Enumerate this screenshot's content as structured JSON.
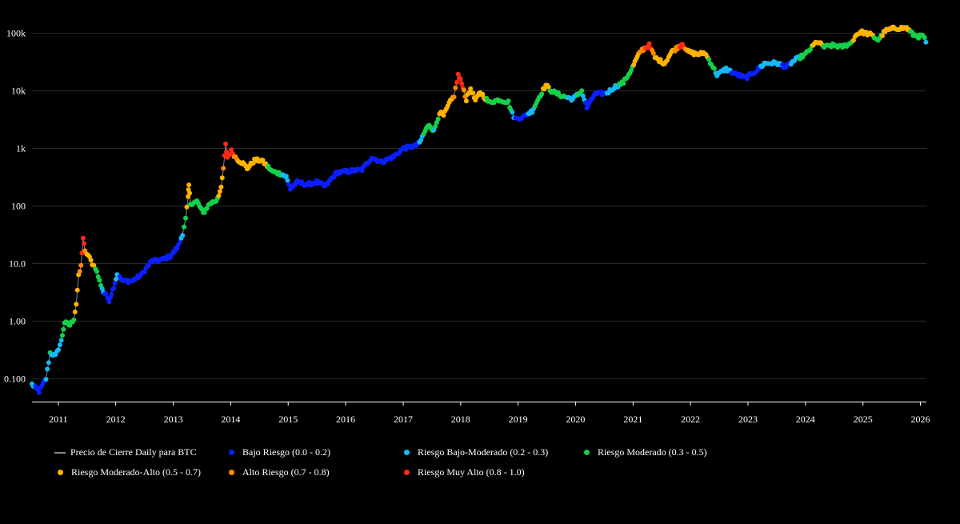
{
  "chart_data": {
    "type": "scatter",
    "title": "",
    "xlabel": "",
    "ylabel": "",
    "y_scale": "log",
    "ylim": [
      0.04,
      200000
    ],
    "xlim": [
      "2010-07-18",
      "2026-02-08"
    ],
    "y_ticks": [
      {
        "value": 0.1,
        "label": "0.100"
      },
      {
        "value": 1,
        "label": "1.00"
      },
      {
        "value": 10,
        "label": "10.0"
      },
      {
        "value": 100,
        "label": "100"
      },
      {
        "value": 1000,
        "label": "1k"
      },
      {
        "value": 10000,
        "label": "10k"
      },
      {
        "value": 100000,
        "label": "100k"
      }
    ],
    "x_ticks": [
      "2011",
      "2012",
      "2013",
      "2014",
      "2015",
      "2016",
      "2017",
      "2018",
      "2019",
      "2020",
      "2021",
      "2022",
      "2023",
      "2024",
      "2025",
      "2026"
    ],
    "grid": true,
    "legend_position": "bottom",
    "colors": {
      "background": "#000000",
      "line": "#888888",
      "bajo": "#0a1eff",
      "bajo_moderado": "#16b8f5",
      "moderado": "#13d24a",
      "moderado_alto": "#ffb300",
      "alto": "#ff8a00",
      "muy_alto": "#ff2a10"
    },
    "legend": [
      {
        "label": "Precio de Cierre Daily para BTC",
        "kind": "line",
        "color": "#888888"
      },
      {
        "label": "Bajo Riesgo (0.0 - 0.2)",
        "kind": "dot",
        "color": "#0a1eff"
      },
      {
        "label": "Riesgo Bajo-Moderado (0.2 - 0.3)",
        "kind": "dot",
        "color": "#16b8f5"
      },
      {
        "label": "Riesgo Moderado (0.3 - 0.5)",
        "kind": "dot",
        "color": "#13d24a"
      },
      {
        "label": "Riesgo Moderado-Alto (0.5 - 0.7)",
        "kind": "dot",
        "color": "#ffb300"
      },
      {
        "label": "Alto Riesgo (0.7 - 0.8)",
        "kind": "dot",
        "color": "#ff8a00"
      },
      {
        "label": "Riesgo Muy Alto (0.8 - 1.0)",
        "kind": "dot",
        "color": "#ff2a10"
      }
    ],
    "series": [
      {
        "name": "Precio de Cierre Daily para BTC",
        "x_units": "date",
        "points": [
          [
            "2010-07-18",
            0.08,
            0.25
          ],
          [
            "2010-09-01",
            0.06,
            0.1
          ],
          [
            "2010-10-15",
            0.1,
            0.2
          ],
          [
            "2010-11-10",
            0.28,
            0.3
          ],
          [
            "2010-12-15",
            0.25,
            0.2
          ],
          [
            "2011-01-20",
            0.45,
            0.25
          ],
          [
            "2011-02-10",
            0.95,
            0.4
          ],
          [
            "2011-03-15",
            0.85,
            0.3
          ],
          [
            "2011-04-10",
            1.1,
            0.45
          ],
          [
            "2011-04-25",
            2.0,
            0.55
          ],
          [
            "2011-05-10",
            6.0,
            0.65
          ],
          [
            "2011-05-25",
            9.0,
            0.75
          ],
          [
            "2011-06-08",
            28.0,
            0.9
          ],
          [
            "2011-06-20",
            16.0,
            0.75
          ],
          [
            "2011-07-10",
            14.0,
            0.6
          ],
          [
            "2011-08-05",
            10.0,
            0.55
          ],
          [
            "2011-08-25",
            8.5,
            0.45
          ],
          [
            "2011-09-20",
            5.0,
            0.35
          ],
          [
            "2011-10-15",
            3.2,
            0.25
          ],
          [
            "2011-11-01",
            2.8,
            0.1
          ],
          [
            "2011-11-20",
            2.3,
            0.1
          ],
          [
            "2011-12-20",
            4.0,
            0.1
          ],
          [
            "2012-01-10",
            6.5,
            0.25
          ],
          [
            "2012-02-15",
            5.0,
            0.1
          ],
          [
            "2012-04-15",
            5.0,
            0.1
          ],
          [
            "2012-06-15",
            6.5,
            0.1
          ],
          [
            "2012-08-15",
            11.0,
            0.1
          ],
          [
            "2012-10-15",
            11.5,
            0.1
          ],
          [
            "2012-12-15",
            13.5,
            0.1
          ],
          [
            "2013-02-01",
            20.0,
            0.15
          ],
          [
            "2013-03-01",
            33.0,
            0.25
          ],
          [
            "2013-03-20",
            60.0,
            0.45
          ],
          [
            "2013-04-05",
            140.0,
            0.6
          ],
          [
            "2013-04-10",
            230.0,
            0.65
          ],
          [
            "2013-04-20",
            110.0,
            0.4
          ],
          [
            "2013-06-01",
            120.0,
            0.4
          ],
          [
            "2013-07-10",
            75.0,
            0.35
          ],
          [
            "2013-08-20",
            110.0,
            0.4
          ],
          [
            "2013-10-01",
            125.0,
            0.45
          ],
          [
            "2013-11-01",
            200.0,
            0.55
          ],
          [
            "2013-11-15",
            450.0,
            0.75
          ],
          [
            "2013-11-30",
            1150.0,
            0.9
          ],
          [
            "2013-12-10",
            700.0,
            0.85
          ],
          [
            "2014-01-05",
            900.0,
            0.85
          ],
          [
            "2014-02-10",
            650.0,
            0.7
          ],
          [
            "2014-03-20",
            550.0,
            0.65
          ],
          [
            "2014-04-15",
            450.0,
            0.6
          ],
          [
            "2014-06-01",
            620.0,
            0.6
          ],
          [
            "2014-07-15",
            620.0,
            0.6
          ],
          [
            "2014-08-20",
            500.0,
            0.5
          ],
          [
            "2014-09-20",
            400.0,
            0.4
          ],
          [
            "2014-10-20",
            380.0,
            0.35
          ],
          [
            "2014-11-20",
            360.0,
            0.3
          ],
          [
            "2014-12-20",
            320.0,
            0.25
          ],
          [
            "2015-01-14",
            200.0,
            0.1
          ],
          [
            "2015-03-01",
            260.0,
            0.1
          ],
          [
            "2015-05-01",
            235.0,
            0.1
          ],
          [
            "2015-07-01",
            260.0,
            0.1
          ],
          [
            "2015-08-25",
            220.0,
            0.1
          ],
          [
            "2015-11-05",
            380.0,
            0.15
          ],
          [
            "2016-01-15",
            400.0,
            0.15
          ],
          [
            "2016-04-15",
            430.0,
            0.15
          ],
          [
            "2016-06-15",
            700.0,
            0.15
          ],
          [
            "2016-08-15",
            580.0,
            0.15
          ],
          [
            "2016-11-01",
            720.0,
            0.15
          ],
          [
            "2017-01-01",
            1000.0,
            0.15
          ],
          [
            "2017-03-15",
            1100.0,
            0.15
          ],
          [
            "2017-04-15",
            1250.0,
            0.2
          ],
          [
            "2017-05-20",
            2000.0,
            0.35
          ],
          [
            "2017-06-15",
            2600.0,
            0.45
          ],
          [
            "2017-07-15",
            2000.0,
            0.25
          ],
          [
            "2017-08-20",
            4200.0,
            0.5
          ],
          [
            "2017-09-15",
            3700.0,
            0.5
          ],
          [
            "2017-10-20",
            6000.0,
            0.6
          ],
          [
            "2017-11-20",
            8200.0,
            0.7
          ],
          [
            "2017-12-17",
            19000.0,
            0.9
          ],
          [
            "2018-01-15",
            12000.0,
            0.8
          ],
          [
            "2018-02-06",
            7000.0,
            0.65
          ],
          [
            "2018-03-05",
            11000.0,
            0.65
          ],
          [
            "2018-04-05",
            6800.0,
            0.55
          ],
          [
            "2018-05-05",
            9500.0,
            0.6
          ],
          [
            "2018-07-01",
            6300.0,
            0.45
          ],
          [
            "2018-09-01",
            7000.0,
            0.45
          ],
          [
            "2018-11-01",
            6400.0,
            0.4
          ],
          [
            "2018-11-25",
            4000.0,
            0.25
          ],
          [
            "2018-12-15",
            3300.0,
            0.15
          ],
          [
            "2019-02-01",
            3500.0,
            0.15
          ],
          [
            "2019-04-01",
            4500.0,
            0.25
          ],
          [
            "2019-05-15",
            7800.0,
            0.4
          ],
          [
            "2019-06-26",
            12500.0,
            0.6
          ],
          [
            "2019-08-01",
            10000.0,
            0.45
          ],
          [
            "2019-10-01",
            8300.0,
            0.35
          ],
          [
            "2019-12-15",
            7200.0,
            0.25
          ],
          [
            "2020-02-10",
            10000.0,
            0.35
          ],
          [
            "2020-03-13",
            5000.0,
            0.1
          ],
          [
            "2020-05-01",
            8800.0,
            0.15
          ],
          [
            "2020-07-20",
            9200.0,
            0.2
          ],
          [
            "2020-09-01",
            11500.0,
            0.25
          ],
          [
            "2020-11-01",
            14000.0,
            0.35
          ],
          [
            "2020-12-20",
            23000.0,
            0.45
          ],
          [
            "2021-01-20",
            35000.0,
            0.6
          ],
          [
            "2021-02-20",
            50000.0,
            0.75
          ],
          [
            "2021-04-14",
            62000.0,
            0.85
          ],
          [
            "2021-05-20",
            38000.0,
            0.65
          ],
          [
            "2021-07-20",
            30000.0,
            0.6
          ],
          [
            "2021-09-01",
            47000.0,
            0.65
          ],
          [
            "2021-11-10",
            66000.0,
            0.85
          ],
          [
            "2021-12-15",
            48000.0,
            0.65
          ],
          [
            "2022-02-15",
            43000.0,
            0.6
          ],
          [
            "2022-04-01",
            46000.0,
            0.6
          ],
          [
            "2022-05-15",
            29000.0,
            0.4
          ],
          [
            "2022-06-18",
            19000.0,
            0.25
          ],
          [
            "2022-08-15",
            24000.0,
            0.25
          ],
          [
            "2022-10-15",
            19500.0,
            0.15
          ],
          [
            "2022-12-20",
            16800.0,
            0.1
          ],
          [
            "2023-03-01",
            23000.0,
            0.15
          ],
          [
            "2023-04-15",
            30000.0,
            0.25
          ],
          [
            "2023-07-01",
            30500.0,
            0.25
          ],
          [
            "2023-09-01",
            26000.0,
            0.15
          ],
          [
            "2023-10-25",
            34000.0,
            0.25
          ],
          [
            "2024-01-01",
            43000.0,
            0.35
          ],
          [
            "2024-03-14",
            72000.0,
            0.6
          ],
          [
            "2024-05-01",
            58000.0,
            0.45
          ],
          [
            "2024-07-01",
            62000.0,
            0.4
          ],
          [
            "2024-08-15",
            58000.0,
            0.35
          ],
          [
            "2024-10-15",
            67000.0,
            0.4
          ],
          [
            "2024-11-20",
            95000.0,
            0.6
          ],
          [
            "2024-12-17",
            106000.0,
            0.65
          ],
          [
            "2025-02-15",
            96000.0,
            0.55
          ],
          [
            "2025-04-08",
            77000.0,
            0.4
          ],
          [
            "2025-05-22",
            110000.0,
            0.6
          ],
          [
            "2025-07-14",
            122000.0,
            0.65
          ],
          [
            "2025-10-06",
            124000.0,
            0.6
          ],
          [
            "2025-11-15",
            95000.0,
            0.4
          ],
          [
            "2025-12-20",
            88000.0,
            0.35
          ],
          [
            "2026-01-20",
            90000.0,
            0.35
          ],
          [
            "2026-02-05",
            70000.0,
            0.25
          ]
        ]
      }
    ]
  }
}
